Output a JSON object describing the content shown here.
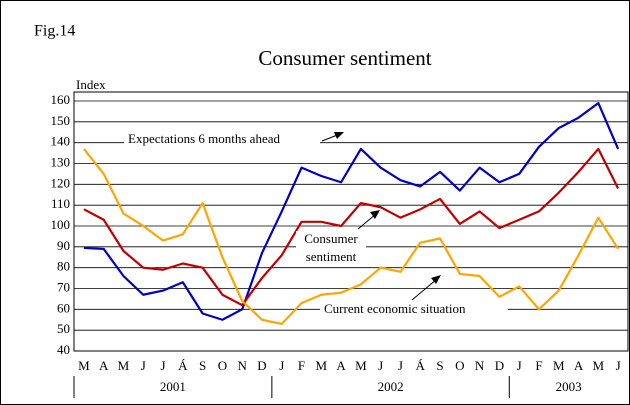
{
  "chart_data": {
    "type": "line",
    "figure_label": "Fig.14",
    "title": "Consumer sentiment",
    "y_label": "Index",
    "categories": [
      "M",
      "A",
      "M",
      "J",
      "J",
      "Á",
      "S",
      "O",
      "N",
      "D",
      "J",
      "F",
      "M",
      "A",
      "M",
      "J",
      "J",
      "Á",
      "S",
      "O",
      "N",
      "D",
      "J",
      "F",
      "M",
      "A",
      "M",
      "J"
    ],
    "years": [
      "2001",
      "2002",
      "2003"
    ],
    "series": [
      {
        "color": "#0000c0",
        "values": [
          89.5,
          89,
          76,
          67,
          69,
          73,
          58,
          55,
          60,
          87,
          107,
          128,
          124,
          121,
          137,
          128,
          122,
          119,
          126,
          117,
          128,
          121,
          125,
          138,
          147,
          152,
          159,
          137
        ]
      },
      {
        "color": "#c00000",
        "values": [
          108,
          103,
          88,
          80,
          79,
          82,
          80,
          67,
          62,
          75,
          86,
          102,
          102,
          100,
          111,
          109,
          104,
          108,
          113,
          101,
          107,
          99,
          103,
          107,
          116,
          126,
          137,
          118
        ]
      },
      {
        "color": "#ffa500",
        "values": [
          137,
          125,
          106,
          100,
          93,
          96,
          111,
          85,
          64,
          55,
          53,
          63,
          67,
          68,
          72,
          80,
          78,
          92,
          94,
          77,
          76,
          66,
          71,
          60,
          69,
          86,
          104,
          89
        ]
      }
    ],
    "annotations": [
      "Expectations 6 months ahead",
      "Consumer",
      "sentiment",
      "Current economic situation"
    ],
    "ylim": [
      40,
      160
    ],
    "yticks": [
      40,
      50,
      60,
      70,
      80,
      90,
      100,
      110,
      120,
      130,
      140,
      150,
      160
    ],
    "grid": true
  }
}
